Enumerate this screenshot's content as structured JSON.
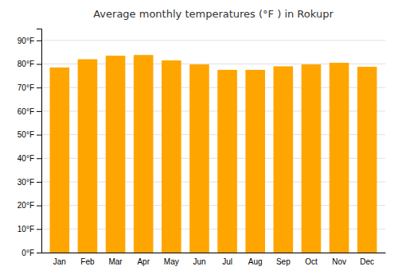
{
  "chart_data": {
    "type": "bar",
    "title": "Average monthly temperatures (°F ) in Rokupr",
    "categories": [
      "Jan",
      "Feb",
      "Mar",
      "Apr",
      "May",
      "Jun",
      "Jul",
      "Aug",
      "Sep",
      "Oct",
      "Nov",
      "Dec"
    ],
    "values": [
      78.5,
      82.0,
      83.5,
      83.8,
      81.5,
      79.8,
      77.5,
      77.5,
      79.0,
      79.8,
      80.5,
      78.8
    ],
    "color": "#FFA500",
    "ylim": [
      0,
      95
    ],
    "yticks": [
      {
        "value": 0,
        "label": "0°F"
      },
      {
        "value": 10,
        "label": "10°F"
      },
      {
        "value": 20,
        "label": "20°F"
      },
      {
        "value": 30,
        "label": "30°F"
      },
      {
        "value": 40,
        "label": "40°F"
      },
      {
        "value": 50,
        "label": "50°F"
      },
      {
        "value": 60,
        "label": "60°F"
      },
      {
        "value": 70,
        "label": "70°F"
      },
      {
        "value": 80,
        "label": "80°F"
      },
      {
        "value": 90,
        "label": "90°F"
      }
    ],
    "grid": true
  }
}
